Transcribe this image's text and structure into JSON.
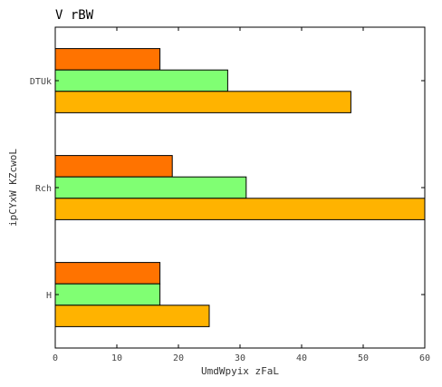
{
  "chart_data": {
    "type": "bar",
    "orientation": "horizontal",
    "title": "V rBW",
    "xlabel": "UmdWpyix zFaL",
    "ylabel": "ipCYxW KZcwoL",
    "categories": [
      "DTUk",
      "Rch",
      "H"
    ],
    "series": [
      {
        "color": "#ff7300",
        "values": [
          17,
          19,
          17
        ]
      },
      {
        "color": "#80ff73",
        "values": [
          28,
          31,
          17
        ]
      },
      {
        "color": "#ffb300",
        "values": [
          48,
          60,
          25
        ]
      }
    ],
    "xlim": [
      0,
      60
    ],
    "xticks": [
      "0",
      "10",
      "20",
      "30",
      "40",
      "50",
      "60"
    ],
    "grid": false,
    "legend": "none"
  }
}
